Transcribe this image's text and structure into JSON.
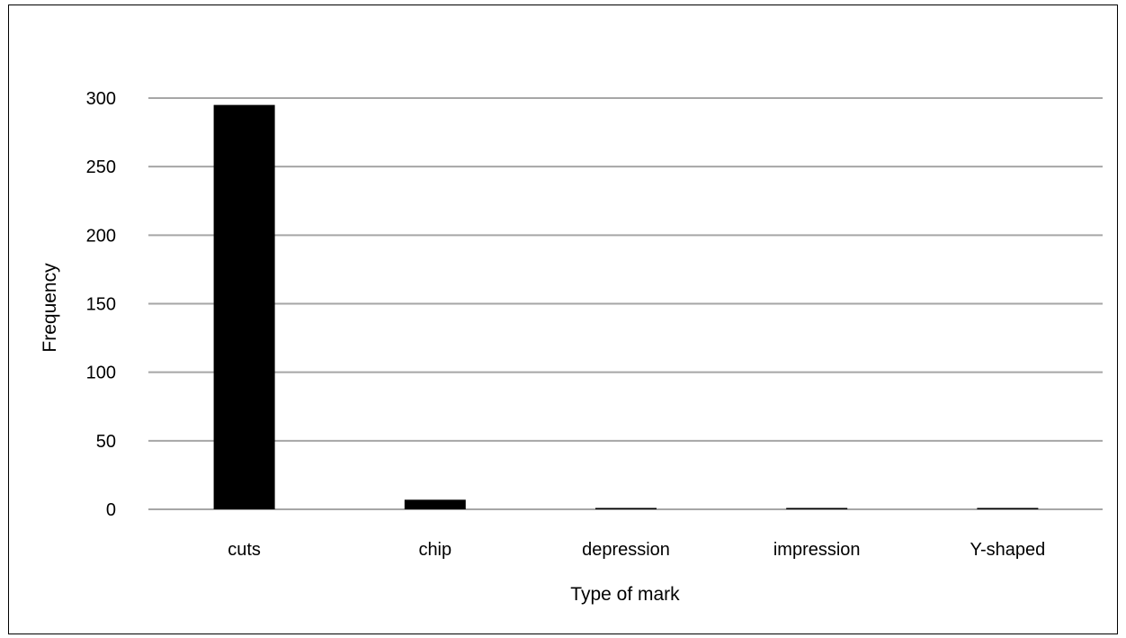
{
  "chart_data": {
    "type": "bar",
    "title": "",
    "xlabel": "Type of mark",
    "ylabel": "Frequency",
    "ylim": [
      0,
      300
    ],
    "yticks": [
      0,
      50,
      100,
      150,
      200,
      250,
      300
    ],
    "grid": true,
    "legend": "none",
    "categories": [
      "cuts",
      "chip",
      "depression",
      "impression",
      "Y-shaped"
    ],
    "series": [
      {
        "values": [
          295,
          7,
          1,
          1,
          1
        ]
      }
    ],
    "colors": {
      "bar": "#000000",
      "grid": "#a6a6a6",
      "axis": "#a6a6a6",
      "text": "#000000"
    }
  }
}
